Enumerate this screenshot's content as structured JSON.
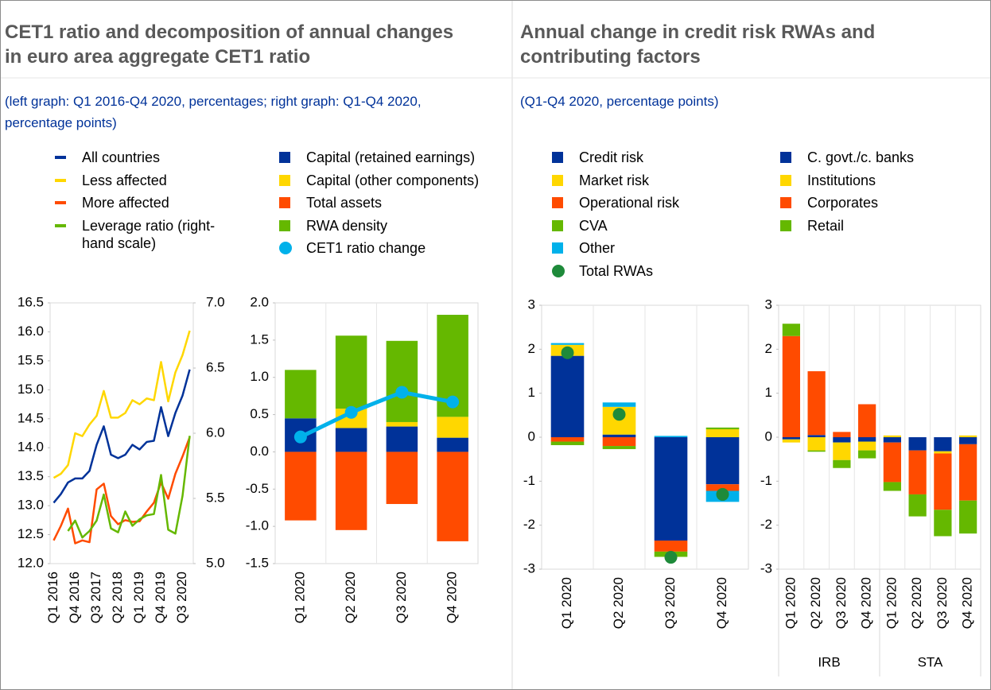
{
  "chart_data": [
    {
      "type": "line",
      "title": "CET1 ratio and decomposition of annual changes in euro area aggregate CET1 ratio",
      "subtitle": "(left graph: Q1 2016-Q4 2020, percentages; right graph: Q1-Q4 2020, percentage points)",
      "categories": [
        "Q1 2016",
        null,
        null,
        "Q4 2016",
        null,
        null,
        "Q3 2017",
        null,
        null,
        "Q2 2018",
        null,
        null,
        "Q1 2019",
        null,
        null,
        "Q4 2019",
        null,
        null,
        "Q3 2020",
        null
      ],
      "ylim": [
        12,
        16.5
      ],
      "yticks": [
        {
          "value": 12,
          "label": "12.0"
        },
        12.5,
        {
          "value": 13,
          "label": "13.0"
        },
        13.5,
        {
          "value": 14,
          "label": "14.0"
        },
        14.5,
        {
          "value": 15,
          "label": "15.0"
        },
        15.5,
        {
          "value": 16,
          "label": "16.0"
        },
        16.5
      ],
      "y2lim": [
        5,
        7
      ],
      "y2ticks": [
        {
          "value": 5,
          "label": "5.0"
        },
        5.5,
        {
          "value": 6,
          "label": "6.0"
        },
        6.5,
        {
          "value": 7,
          "label": "7.0"
        }
      ],
      "grid": false,
      "series": [
        {
          "name": "All countries",
          "color": "#003299",
          "values": [
            13.05,
            13.2,
            13.4,
            13.47,
            13.47,
            13.6,
            14.05,
            14.37,
            13.88,
            13.82,
            13.88,
            14.05,
            13.97,
            14.1,
            14.12,
            14.7,
            14.2,
            14.6,
            14.9,
            15.35
          ]
        },
        {
          "name": "Less affected",
          "color": "#ffd700",
          "values": [
            13.48,
            13.55,
            13.7,
            14.25,
            14.2,
            14.4,
            14.55,
            14.98,
            14.52,
            14.52,
            14.6,
            14.82,
            14.75,
            14.85,
            14.82,
            15.48,
            14.8,
            15.3,
            15.6,
            16.02
          ]
        },
        {
          "name": "More affected",
          "color": "#ff4b00",
          "values": [
            12.4,
            12.65,
            12.95,
            12.35,
            12.4,
            12.37,
            13.28,
            13.38,
            12.82,
            12.68,
            12.75,
            12.72,
            12.73,
            12.9,
            13.05,
            13.4,
            13.12,
            13.55,
            13.85,
            14.18
          ]
        },
        {
          "name": "Leverage ratio (right-hand scale)",
          "color": "#65b800",
          "axis": "y2",
          "values": [
            null,
            null,
            5.25,
            5.33,
            5.2,
            5.25,
            5.33,
            5.53,
            5.27,
            5.24,
            5.4,
            5.29,
            5.34,
            5.37,
            5.38,
            5.68,
            5.26,
            5.23,
            5.52,
            5.98
          ]
        }
      ]
    },
    {
      "type": "bar",
      "stacked": true,
      "categories": [
        "Q1 2020",
        "Q2 2020",
        "Q3 2020",
        "Q4 2020"
      ],
      "ylim": [
        -1.5,
        2
      ],
      "yticks": [
        -1.5,
        {
          "value": -1,
          "label": "-1.0"
        },
        -0.5,
        {
          "value": 0,
          "label": "0.0"
        },
        0.5,
        {
          "value": 1,
          "label": "1.0"
        },
        1.5,
        {
          "value": 2,
          "label": "2.0"
        }
      ],
      "grid": false,
      "series": [
        {
          "name": "Capital (retained earnings)",
          "color": "#003299",
          "values": [
            0.45,
            0.32,
            0.34,
            0.19
          ]
        },
        {
          "name": "Capital (other components)",
          "color": "#ffd700",
          "values": [
            0,
            0.26,
            0.06,
            0.28
          ]
        },
        {
          "name": "Total assets",
          "color": "#ff4b00",
          "values": [
            -0.92,
            -1.05,
            -0.7,
            -1.2
          ]
        },
        {
          "name": "RWA density",
          "color": "#65b800",
          "values": [
            0.65,
            0.98,
            1.09,
            1.37
          ]
        },
        {
          "name": "CET1 ratio change",
          "color": "#00b1ea",
          "type": "line",
          "values": [
            0.2,
            0.53,
            0.8,
            0.67
          ]
        }
      ]
    },
    {
      "type": "bar",
      "stacked": true,
      "title": "Annual change in credit risk RWAs and contributing factors",
      "subtitle": "(Q1-Q4 2020, percentage points)",
      "categories": [
        "Q1 2020",
        "Q2 2020",
        "Q3 2020",
        "Q4 2020"
      ],
      "ylim": [
        -3,
        3
      ],
      "yticks": [
        -3,
        -2,
        -1,
        0,
        1,
        2,
        3
      ],
      "grid": false,
      "series": [
        {
          "name": "Credit risk",
          "color": "#003299",
          "values": [
            1.85,
            0.06,
            -2.35,
            -1.07
          ]
        },
        {
          "name": "Market risk",
          "color": "#ffd700",
          "values": [
            0.25,
            0.63,
            0,
            0.18
          ]
        },
        {
          "name": "Operational risk",
          "color": "#ff4b00",
          "values": [
            -0.1,
            -0.2,
            -0.25,
            -0.15
          ]
        },
        {
          "name": "CVA",
          "color": "#65b800",
          "values": [
            -0.08,
            -0.07,
            -0.12,
            0.04
          ]
        },
        {
          "name": "Other",
          "color": "#00b1ea",
          "values": [
            0.04,
            0.1,
            0.03,
            -0.25
          ]
        },
        {
          "name": "Total RWAs",
          "color": "#1e8a3a",
          "type": "dot",
          "values": [
            1.92,
            0.52,
            -2.73,
            -1.3
          ]
        }
      ]
    },
    {
      "type": "bar",
      "stacked": true,
      "categories": [
        "Q1 2020",
        "Q2 2020",
        "Q3 2020",
        "Q4 2020",
        "Q1 2020",
        "Q2 2020",
        "Q3 2020",
        "Q4 2020"
      ],
      "groups": [
        "IRB",
        "STA"
      ],
      "ylim": [
        -3,
        3
      ],
      "yticks": [
        -3,
        -2,
        -1,
        0,
        1,
        2,
        3
      ],
      "grid": false,
      "series": [
        {
          "name": "C. govt./c. banks",
          "color": "#003299",
          "values": [
            -0.05,
            0.05,
            -0.12,
            -0.1,
            -0.12,
            -0.3,
            -0.32,
            -0.16
          ]
        },
        {
          "name": "Institutions",
          "color": "#ffd700",
          "values": [
            -0.07,
            -0.3,
            -0.4,
            -0.2,
            0.04,
            0,
            -0.05,
            0.04
          ]
        },
        {
          "name": "Corporates",
          "color": "#ff4b00",
          "values": [
            2.3,
            1.45,
            0.12,
            0.75,
            -0.9,
            -1,
            -1.28,
            -1.28
          ]
        },
        {
          "name": "Retail",
          "color": "#65b800",
          "values": [
            0.28,
            -0.03,
            -0.18,
            -0.18,
            -0.2,
            -0.5,
            -0.6,
            -0.75
          ]
        }
      ]
    }
  ]
}
